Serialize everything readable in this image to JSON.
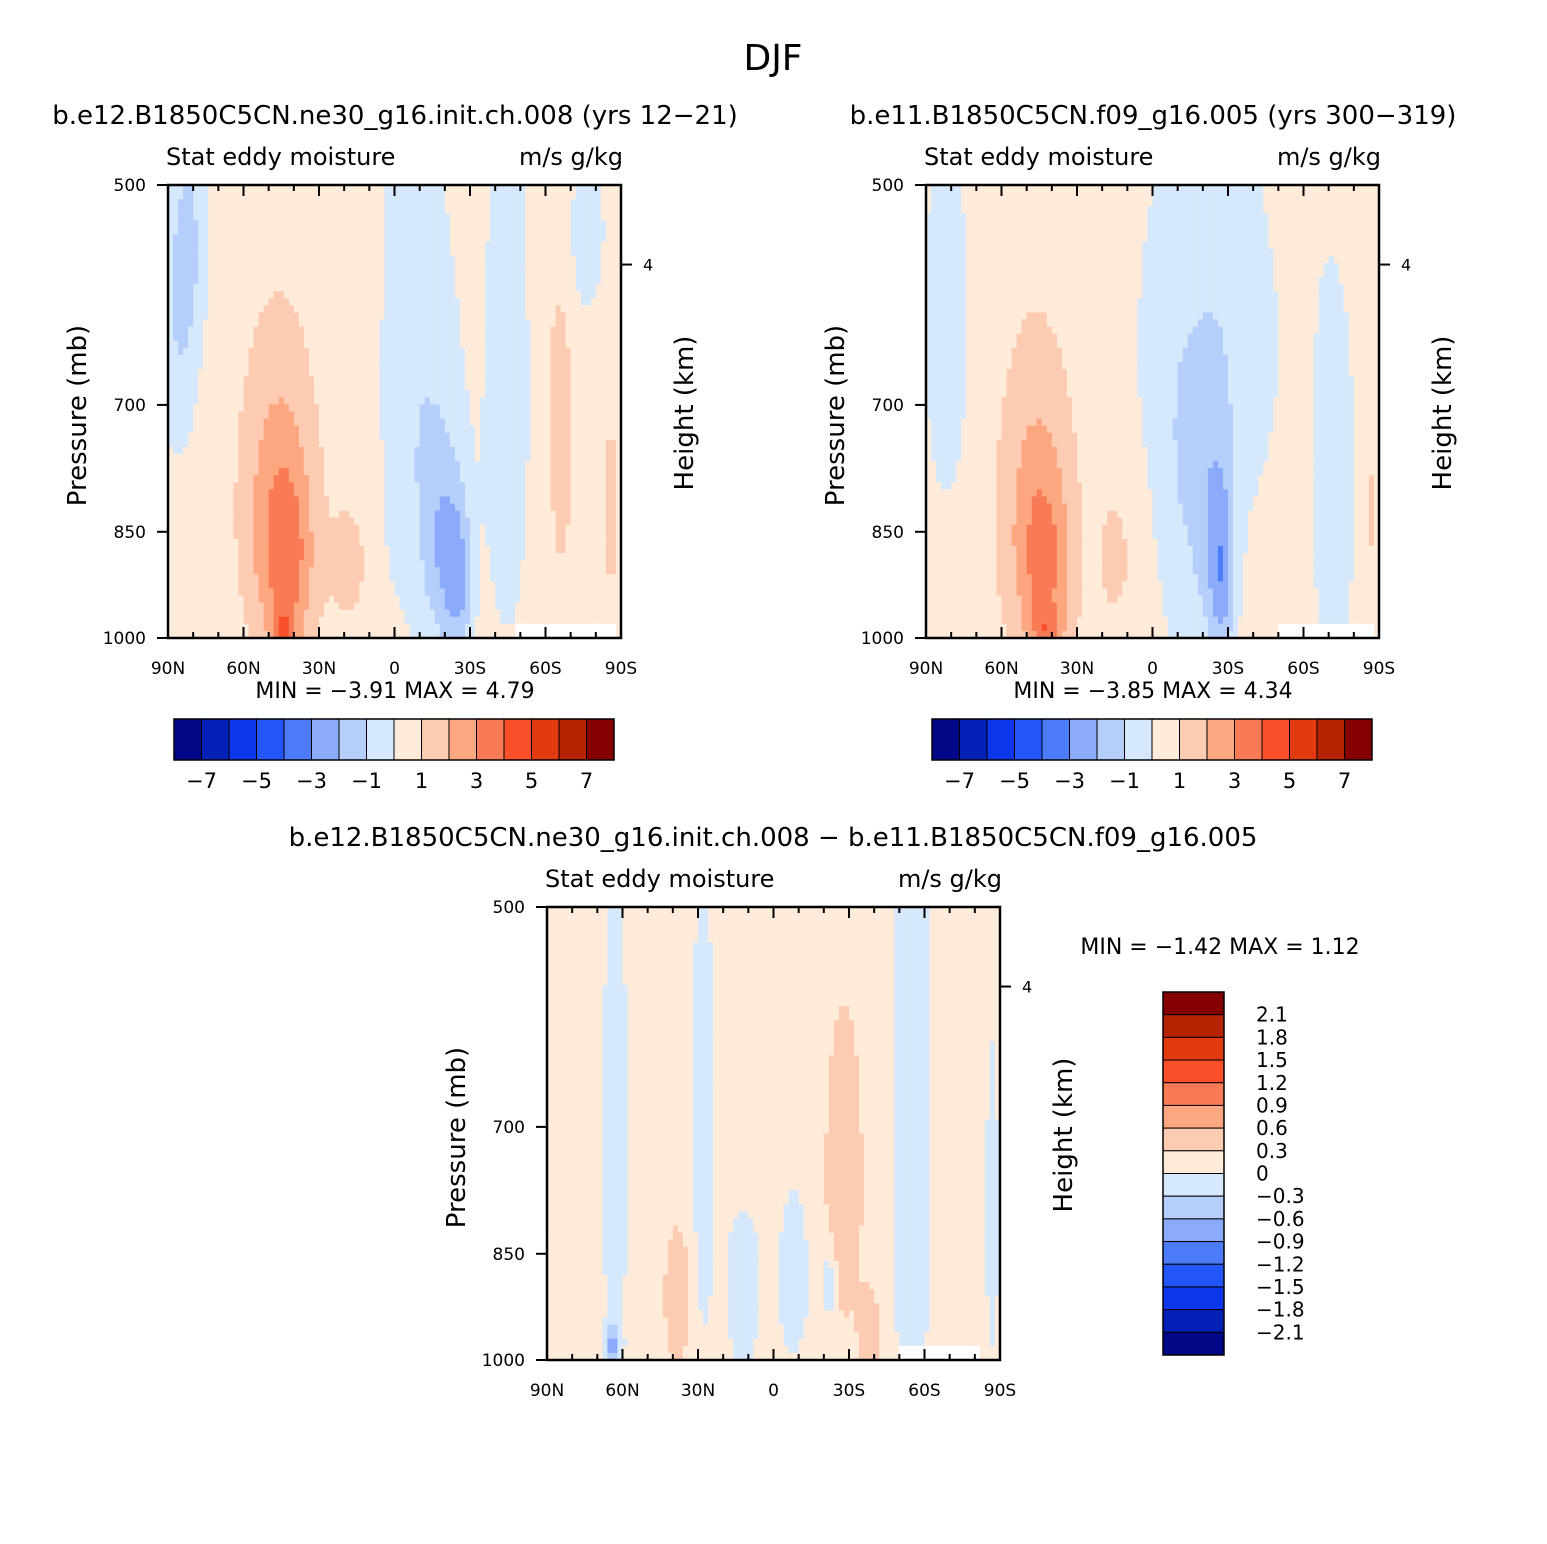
{
  "figure": {
    "title": "DJF"
  },
  "colors": {
    "positive": [
      "#ffebda",
      "#fdcab2",
      "#fca780",
      "#f97b55",
      "#f9502a",
      "#e33b10",
      "#b72300",
      "#850000"
    ],
    "negative": [
      "#d6e8fb",
      "#b6cefb",
      "#8aaafb",
      "#4d7cfb",
      "#2256fb",
      "#0c36ea",
      "#0421b7",
      "#000887"
    ],
    "axis": "#000000",
    "missing": "#ffffff"
  },
  "chart_data": [
    {
      "type": "heatmap",
      "name": "panel-left",
      "title": "b.e12.B1850C5CN.ne30_g16.init.ch.008 (yrs 12-21)",
      "left_label": "Stat eddy moisture",
      "right_label": "m/s g/kg",
      "ylabel": "Pressure (mb)",
      "y2label": "Height (km)",
      "xticks": [
        "90N",
        "60N",
        "30N",
        "0",
        "30S",
        "60S",
        "90S"
      ],
      "yticks": [
        "500",
        "700",
        "850",
        "1000"
      ],
      "y2ticks": [
        "4"
      ],
      "stats": {
        "min_label": "MIN =",
        "min": "-3.91",
        "max_label": "MAX =",
        "max": "4.79"
      },
      "colorbar": {
        "orientation": "horizontal",
        "labels": [
          "-7",
          "-5",
          "-3",
          "-1",
          "1",
          "3",
          "5",
          "7"
        ],
        "levels": [
          -7,
          -6,
          -5,
          -4,
          -3,
          -2,
          -1,
          0,
          1,
          2,
          3,
          4,
          5,
          6,
          7
        ]
      },
      "field": {
        "background": 0.5,
        "blobs": [
          {
            "lat": 86,
            "p": 600,
            "dlat": 8,
            "dp": 150,
            "v": -1.5
          },
          {
            "lat": 80,
            "p": 540,
            "dlat": 6,
            "dp": 100,
            "v": -1.0
          },
          {
            "lat": 46,
            "p": 820,
            "dlat": 14,
            "dp": 190,
            "v": 2.2
          },
          {
            "lat": 42,
            "p": 900,
            "dlat": 10,
            "dp": 120,
            "v": 1.6
          },
          {
            "lat": 44,
            "p": 990,
            "dlat": 5,
            "dp": 35,
            "v": 2.0
          },
          {
            "lat": 18,
            "p": 890,
            "dlat": 7,
            "dp": 80,
            "v": 1.0
          },
          {
            "lat": 9,
            "p": 800,
            "dlat": 3,
            "dp": 130,
            "v": 0.6
          },
          {
            "lat": 2,
            "p": 500,
            "dlat": 2,
            "dp": 90,
            "v": -1.0
          },
          {
            "lat": -10,
            "p": 720,
            "dlat": 16,
            "dp": 260,
            "v": -1.4
          },
          {
            "lat": -20,
            "p": 880,
            "dlat": 8,
            "dp": 140,
            "v": -2.0
          },
          {
            "lat": -26,
            "p": 920,
            "dlat": 5,
            "dp": 110,
            "v": -1.8
          },
          {
            "lat": -45,
            "p": 690,
            "dlat": 10,
            "dp": 350,
            "v": -1.0
          },
          {
            "lat": -66,
            "p": 700,
            "dlat": 6,
            "dp": 240,
            "v": 0.9
          },
          {
            "lat": -86,
            "p": 820,
            "dlat": 4,
            "dp": 160,
            "v": 0.7
          },
          {
            "lat": -75,
            "p": 540,
            "dlat": 10,
            "dp": 80,
            "v": -1.0
          }
        ],
        "missing_box": {
          "lat_from": -48,
          "lat_to": -87,
          "p_from": 975,
          "p_to": 1000
        }
      }
    },
    {
      "type": "heatmap",
      "name": "panel-right",
      "title": "b.e11.B1850C5CN.f09_g16.005 (yrs 300-319)",
      "left_label": "Stat eddy moisture",
      "right_label": "m/s g/kg",
      "ylabel": "Pressure (mb)",
      "y2label": "Height (km)",
      "xticks": [
        "90N",
        "60N",
        "30N",
        "0",
        "30S",
        "60S",
        "90S"
      ],
      "yticks": [
        "500",
        "700",
        "850",
        "1000"
      ],
      "y2ticks": [
        "4"
      ],
      "stats": {
        "min_label": "MIN =",
        "min": "-3.85",
        "max_label": "MAX =",
        "max": "4.34"
      },
      "colorbar": {
        "orientation": "horizontal",
        "labels": [
          "-7",
          "-5",
          "-3",
          "-1",
          "1",
          "3",
          "5",
          "7"
        ],
        "levels": [
          -7,
          -6,
          -5,
          -4,
          -3,
          -2,
          -1,
          0,
          1,
          2,
          3,
          4,
          5,
          6,
          7
        ]
      },
      "field": {
        "background": 0.5,
        "blobs": [
          {
            "lat": 82,
            "p": 620,
            "dlat": 8,
            "dp": 170,
            "v": -1.5
          },
          {
            "lat": 46,
            "p": 830,
            "dlat": 14,
            "dp": 190,
            "v": 2.0
          },
          {
            "lat": 42,
            "p": 910,
            "dlat": 10,
            "dp": 120,
            "v": 1.4
          },
          {
            "lat": 42,
            "p": 990,
            "dlat": 6,
            "dp": 35,
            "v": 1.7
          },
          {
            "lat": 15,
            "p": 880,
            "dlat": 7,
            "dp": 90,
            "v": 0.9
          },
          {
            "lat": -22,
            "p": 640,
            "dlat": 28,
            "dp": 220,
            "v": -1.3
          },
          {
            "lat": -24,
            "p": 860,
            "dlat": 8,
            "dp": 170,
            "v": -1.9
          },
          {
            "lat": -28,
            "p": 920,
            "dlat": 5,
            "dp": 120,
            "v": -1.8
          },
          {
            "lat": -10,
            "p": 850,
            "dlat": 8,
            "dp": 220,
            "v": -0.8
          },
          {
            "lat": -72,
            "p": 800,
            "dlat": 12,
            "dp": 320,
            "v": -0.8
          },
          {
            "lat": -60,
            "p": 600,
            "dlat": 3,
            "dp": 180,
            "v": 0.8
          },
          {
            "lat": -87,
            "p": 820,
            "dlat": 3,
            "dp": 200,
            "v": 0.7
          }
        ],
        "missing_box": {
          "lat_from": -50,
          "lat_to": -87,
          "p_from": 975,
          "p_to": 1000
        }
      }
    },
    {
      "type": "heatmap",
      "name": "panel-diff",
      "title": "b.e12.B1850C5CN.ne30_g16.init.ch.008 - b.e11.B1850C5CN.f09_g16.005",
      "left_label": "Stat eddy moisture",
      "right_label": "m/s g/kg",
      "ylabel": "Pressure (mb)",
      "y2label": "Height (km)",
      "xticks": [
        "90N",
        "60N",
        "30N",
        "0",
        "30S",
        "60S",
        "90S"
      ],
      "yticks": [
        "500",
        "700",
        "850",
        "1000"
      ],
      "y2ticks": [
        "4"
      ],
      "stats": {
        "min_label": "MIN =",
        "min": "-1.42",
        "max_label": "MAX =",
        "max": "1.12"
      },
      "colorbar": {
        "orientation": "vertical",
        "labels": [
          "2.1",
          "1.8",
          "1.5",
          "1.2",
          "0.9",
          "0.6",
          "0.3",
          "0",
          "-0.3",
          "-0.6",
          "-0.9",
          "-1.2",
          "-1.5",
          "-1.8",
          "-2.1"
        ],
        "levels": [
          -2.1,
          -1.8,
          -1.5,
          -1.2,
          -0.9,
          -0.6,
          -0.3,
          0,
          0.3,
          0.6,
          0.9,
          1.2,
          1.5,
          1.8,
          2.1
        ]
      },
      "field": {
        "background": 0.15,
        "blobs": [
          {
            "lat": 63,
            "p": 720,
            "dlat": 6,
            "dp": 320,
            "v": -0.3
          },
          {
            "lat": 64,
            "p": 980,
            "dlat": 3,
            "dp": 30,
            "v": -0.8
          },
          {
            "lat": 38,
            "p": 910,
            "dlat": 5,
            "dp": 90,
            "v": 0.45
          },
          {
            "lat": 28,
            "p": 700,
            "dlat": 5,
            "dp": 300,
            "v": -0.3
          },
          {
            "lat": 12,
            "p": 900,
            "dlat": 8,
            "dp": 130,
            "v": -0.3
          },
          {
            "lat": -8,
            "p": 880,
            "dlat": 7,
            "dp": 130,
            "v": -0.3
          },
          {
            "lat": -22,
            "p": 890,
            "dlat": 3,
            "dp": 50,
            "v": -0.45
          },
          {
            "lat": -28,
            "p": 760,
            "dlat": 7,
            "dp": 170,
            "v": 0.45
          },
          {
            "lat": -38,
            "p": 960,
            "dlat": 4,
            "dp": 60,
            "v": 0.4
          },
          {
            "lat": -55,
            "p": 700,
            "dlat": 7,
            "dp": 420,
            "v": -0.45
          },
          {
            "lat": -87,
            "p": 800,
            "dlat": 3,
            "dp": 220,
            "v": -0.3
          }
        ],
        "missing_box": {
          "lat_from": -50,
          "lat_to": -82,
          "p_from": 978,
          "p_to": 1000
        }
      }
    }
  ]
}
